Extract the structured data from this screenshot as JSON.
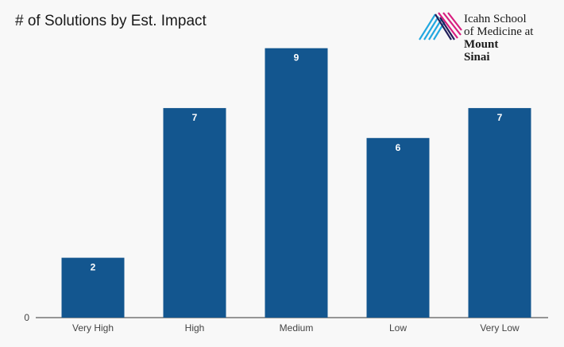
{
  "chart_data": {
    "type": "bar",
    "title": "# of Solutions by Est. Impact",
    "categories": [
      "Very High",
      "High",
      "Medium",
      "Low",
      "Very Low"
    ],
    "values": [
      2,
      7,
      9,
      6,
      7
    ],
    "ylim": [
      0,
      10
    ],
    "y_ticks": [
      "0"
    ],
    "bar_color": "#13568f",
    "grid": false,
    "legend": "none"
  },
  "logo": {
    "line1": "Icahn School",
    "line2": "of Medicine at",
    "line3": "Mount",
    "line4": "Sinai",
    "colors": [
      "#d81d7f",
      "#23a8e0",
      "#221f5b"
    ]
  }
}
